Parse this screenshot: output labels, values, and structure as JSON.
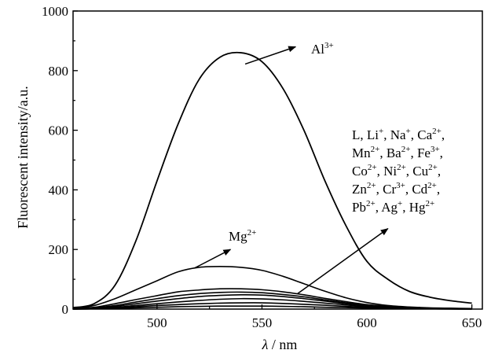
{
  "chart_data": {
    "type": "line",
    "xlabel": "λ / nm",
    "xlabel_parts": {
      "symbol": "λ",
      "unit": "nm"
    },
    "ylabel": "Fluorescent intensity/a.u.",
    "xlim": [
      460,
      655
    ],
    "ylim": [
      0,
      1000
    ],
    "x_ticks": [
      500,
      550,
      600,
      650
    ],
    "y_ticks": [
      0,
      200,
      400,
      600,
      800,
      1000
    ],
    "grid": false,
    "series": [
      {
        "name": "Al³⁺",
        "x": [
          460,
          470,
          480,
          490,
          500,
          510,
          520,
          530,
          540,
          550,
          560,
          570,
          580,
          590,
          600,
          610,
          620,
          630,
          640,
          650
        ],
        "y": [
          5,
          18,
          80,
          230,
          430,
          620,
          770,
          845,
          860,
          830,
          740,
          600,
          430,
          280,
          160,
          100,
          60,
          40,
          28,
          20
        ]
      },
      {
        "name": "Mg²⁺",
        "x": [
          460,
          470,
          480,
          490,
          500,
          510,
          520,
          530,
          540,
          550,
          560,
          570,
          580,
          590,
          600,
          610,
          620,
          630,
          640,
          650
        ],
        "y": [
          2,
          12,
          35,
          65,
          95,
          125,
          140,
          143,
          140,
          130,
          110,
          85,
          60,
          38,
          22,
          12,
          7,
          4,
          3,
          2
        ]
      },
      {
        "name": "L, Li⁺, Na⁺, Ca²⁺, Mn²⁺, Ba²⁺, Fe³⁺, Co²⁺, Ni²⁺, Cu²⁺, Zn²⁺, Cr³⁺, Cd²⁺, Pb²⁺, Ag⁺, Hg²⁺",
        "x": [
          460,
          470,
          480,
          490,
          500,
          510,
          520,
          530,
          540,
          550,
          560,
          570,
          580,
          590,
          600,
          610,
          620,
          630,
          640,
          650
        ],
        "y": [
          1,
          6,
          18,
          32,
          45,
          58,
          64,
          68,
          68,
          65,
          58,
          48,
          36,
          25,
          15,
          9,
          5,
          3,
          2,
          1
        ]
      },
      {
        "x": [
          460,
          470,
          480,
          490,
          500,
          510,
          520,
          530,
          540,
          550,
          560,
          570,
          580,
          590,
          600,
          610,
          620,
          630,
          640,
          650
        ],
        "y": [
          1,
          4,
          12,
          24,
          35,
          45,
          52,
          56,
          57,
          55,
          49,
          41,
          31,
          21,
          13,
          7,
          4,
          2,
          1,
          1
        ]
      },
      {
        "x": [
          460,
          470,
          480,
          490,
          500,
          510,
          520,
          530,
          540,
          550,
          560,
          570,
          580,
          590,
          600,
          610,
          620,
          630,
          640,
          650
        ],
        "y": [
          1,
          3,
          9,
          18,
          27,
          35,
          42,
          46,
          48,
          47,
          42,
          35,
          27,
          18,
          11,
          6,
          3,
          2,
          1,
          1
        ]
      },
      {
        "x": [
          460,
          470,
          480,
          490,
          500,
          510,
          520,
          530,
          540,
          550,
          560,
          570,
          580,
          590,
          600,
          610,
          620,
          630,
          640,
          650
        ],
        "y": [
          0,
          2,
          6,
          12,
          18,
          24,
          29,
          33,
          35,
          34,
          31,
          26,
          20,
          14,
          8,
          5,
          3,
          1,
          1,
          0
        ]
      },
      {
        "x": [
          460,
          470,
          480,
          490,
          500,
          510,
          520,
          530,
          540,
          550,
          560,
          570,
          580,
          590,
          600,
          610,
          620,
          630,
          640,
          650
        ],
        "y": [
          0,
          1,
          4,
          8,
          12,
          15,
          18,
          20,
          21,
          21,
          19,
          16,
          13,
          9,
          6,
          4,
          2,
          1,
          1,
          0
        ]
      },
      {
        "x": [
          460,
          470,
          480,
          490,
          500,
          510,
          520,
          530,
          540,
          550,
          560,
          570,
          580,
          590,
          600,
          610,
          620,
          630,
          640,
          650
        ],
        "y": [
          0,
          1,
          2,
          4,
          6,
          8,
          9,
          10,
          10,
          10,
          9,
          8,
          6,
          5,
          3,
          2,
          1,
          1,
          0,
          0
        ]
      }
    ],
    "annotations": [
      {
        "text": "Al³⁺",
        "parts": [
          [
            "Al",
            "3+"
          ]
        ],
        "arrow_from": [
          542,
          822
        ],
        "arrow_to": [
          566,
          880
        ]
      },
      {
        "text": "Mg²⁺",
        "parts": [
          [
            "Mg",
            "2+"
          ]
        ],
        "arrow_from": [
          518,
          138
        ],
        "arrow_to": [
          535,
          200
        ]
      },
      {
        "text": "L, Li⁺, Na⁺, Ca²⁺, Mn²⁺, Ba²⁺, Fe³⁺, Co²⁺, Ni²⁺, Cu²⁺, Zn²⁺, Cr³⁺, Cd²⁺, Pb²⁺, Ag⁺, Hg²⁺",
        "lines": [
          [
            [
              "L, Li",
              "+"
            ],
            [
              ", Na",
              "+"
            ],
            [
              ", Ca",
              "2+"
            ],
            [
              ",",
              ""
            ]
          ],
          [
            [
              "Mn",
              "2+"
            ],
            [
              ", Ba",
              "2+"
            ],
            [
              ", Fe",
              "3+"
            ],
            [
              ",",
              ""
            ]
          ],
          [
            [
              "Co",
              "2+"
            ],
            [
              ", Ni",
              "2+"
            ],
            [
              ", Cu",
              "2+"
            ],
            [
              ",",
              ""
            ]
          ],
          [
            [
              "Zn",
              "2+"
            ],
            [
              ", Cr",
              "3+"
            ],
            [
              ", Cd",
              "2+"
            ],
            [
              ",",
              ""
            ]
          ],
          [
            [
              "Pb",
              "2+"
            ],
            [
              ", Ag",
              "+"
            ],
            [
              ", Hg",
              "2+"
            ]
          ]
        ],
        "arrow_from": [
          567,
          52
        ],
        "arrow_to": [
          610,
          270
        ]
      }
    ]
  }
}
